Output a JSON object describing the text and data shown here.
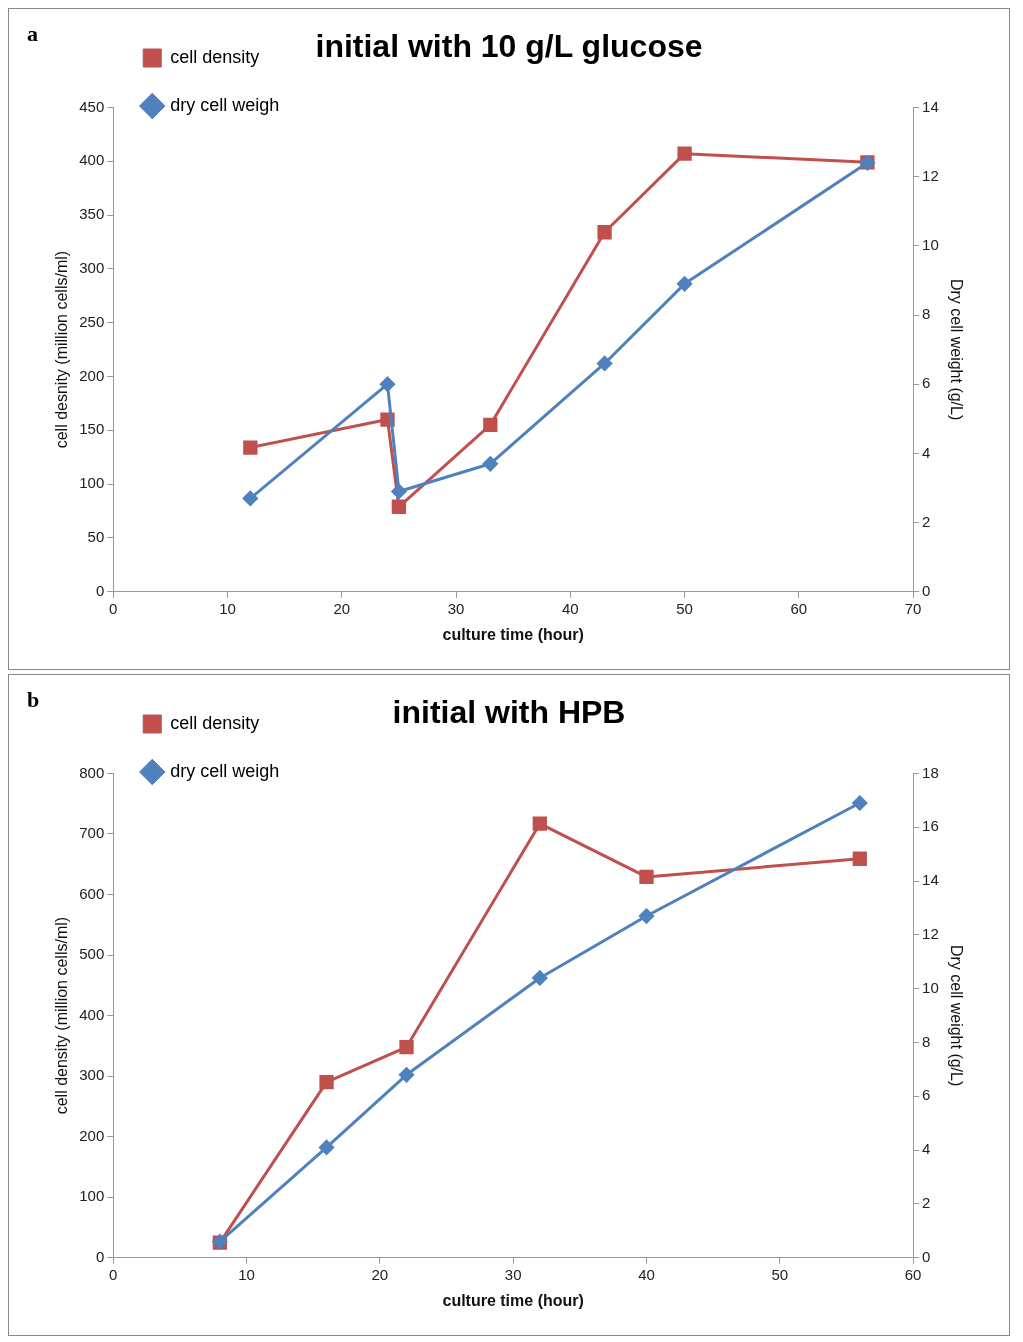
{
  "chart_data": [
    {
      "type": "line",
      "title": "initial with 10 g/L glucose",
      "xlabel": "culture time (hour)",
      "ylabel": "cell desnity (million cells/ml)",
      "y2label": "Dry cell weight (g/L)",
      "annotations": [
        "a"
      ],
      "xlim": [
        0,
        70
      ],
      "xticks": [
        0,
        10,
        20,
        30,
        40,
        50,
        60,
        70
      ],
      "ylim": [
        0,
        450
      ],
      "yticks": [
        0,
        50,
        100,
        150,
        200,
        250,
        300,
        350,
        400,
        450
      ],
      "y2lim": [
        0,
        14
      ],
      "y2ticks": [
        0,
        2,
        4,
        6,
        8,
        10,
        12,
        14
      ],
      "legend": "top left",
      "grid": false,
      "line_style": "solid",
      "series": [
        {
          "name": "cell density",
          "color": "#c0504d",
          "marker": "square",
          "x": [
            12,
            24,
            25,
            33,
            43,
            50,
            66
          ],
          "values": [
            134,
            160,
            79,
            155,
            334,
            407,
            399
          ]
        },
        {
          "name": "dry cell weigh",
          "color": "#4f81bd",
          "marker": "diamond",
          "axis": "y2",
          "x": [
            12,
            24,
            25,
            33,
            43,
            50,
            66
          ],
          "values": [
            2.7,
            6,
            2.9,
            3.7,
            6.6,
            8.9,
            12.4
          ]
        }
      ]
    },
    {
      "type": "line",
      "title": "initial with HPB",
      "xlabel": "culture time (hour)",
      "ylabel": "cell density (million cells/ml)",
      "y2label": "Dry cell weight (g/L)",
      "annotations": [
        "b"
      ],
      "xlim": [
        0,
        60
      ],
      "xticks": [
        0,
        10,
        20,
        30,
        40,
        50,
        60
      ],
      "ylim": [
        0,
        800
      ],
      "yticks": [
        0,
        100,
        200,
        300,
        400,
        500,
        600,
        700,
        800
      ],
      "y2lim": [
        0,
        18
      ],
      "y2ticks": [
        0,
        2,
        4,
        6,
        8,
        10,
        12,
        14,
        16,
        18
      ],
      "legend": "top left",
      "grid": false,
      "line_style": "solid",
      "series": [
        {
          "name": "cell density",
          "color": "#c0504d",
          "marker": "square",
          "x": [
            8,
            16,
            22,
            32,
            40,
            56
          ],
          "values": [
            25,
            290,
            348,
            717,
            629,
            659
          ]
        },
        {
          "name": "dry cell weigh",
          "color": "#4f81bd",
          "marker": "diamond",
          "axis": "y2",
          "x": [
            8,
            16,
            22,
            32,
            40,
            56
          ],
          "values": [
            0.6,
            4.1,
            6.8,
            10.4,
            12.7,
            16.9
          ]
        }
      ]
    }
  ]
}
